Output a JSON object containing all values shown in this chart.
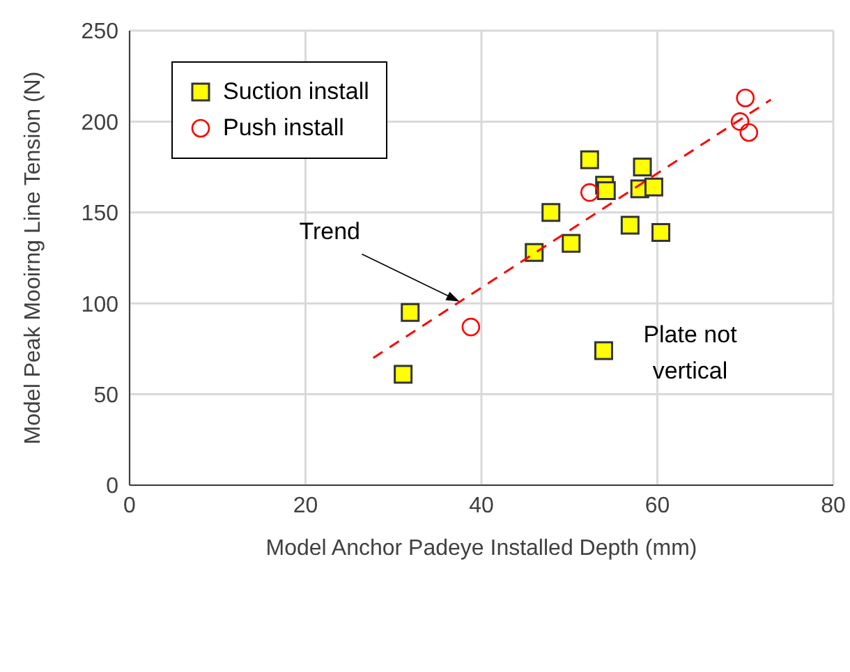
{
  "chart_data": {
    "type": "scatter",
    "xlabel": "Model Anchor Padeye Installed Depth (mm)",
    "ylabel": "Model Peak Mooirng Line Tension (N)",
    "xlim": [
      0,
      80
    ],
    "xticks": [
      0,
      20,
      40,
      60,
      80
    ],
    "ylim": [
      0,
      250
    ],
    "yticks": [
      0,
      50,
      100,
      150,
      200,
      250
    ],
    "grid": true,
    "legend": "top left",
    "series": [
      {
        "name": "Suction install",
        "type": "scatter",
        "marker": "square",
        "color": "#ffff00",
        "x": [
          31.1,
          31.9,
          46.0,
          47.9,
          50.2,
          52.3,
          54.0,
          54.2,
          53.9,
          56.9,
          58.3,
          58.0,
          59.6,
          60.4
        ],
        "values": [
          61,
          95,
          128,
          150,
          133,
          179,
          165,
          162,
          74,
          143,
          175,
          163,
          164,
          139
        ]
      },
      {
        "name": "Push install",
        "type": "scatter",
        "marker": "circle",
        "color": "#ff0000",
        "x": [
          38.8,
          52.3,
          69.4,
          70.0,
          70.4
        ],
        "values": [
          87,
          161,
          200,
          213,
          194
        ]
      },
      {
        "type": "line",
        "marker": "none",
        "line_style": "dashed",
        "color": "#ff0000",
        "x": [
          27.7,
          72.9
        ],
        "values": [
          70,
          212
        ]
      }
    ],
    "annotations": [
      {
        "text": "Trend",
        "x": 37.5,
        "y": 101
      },
      {
        "text": "Plate not vertical",
        "x": 53.9,
        "y": 74
      }
    ]
  }
}
